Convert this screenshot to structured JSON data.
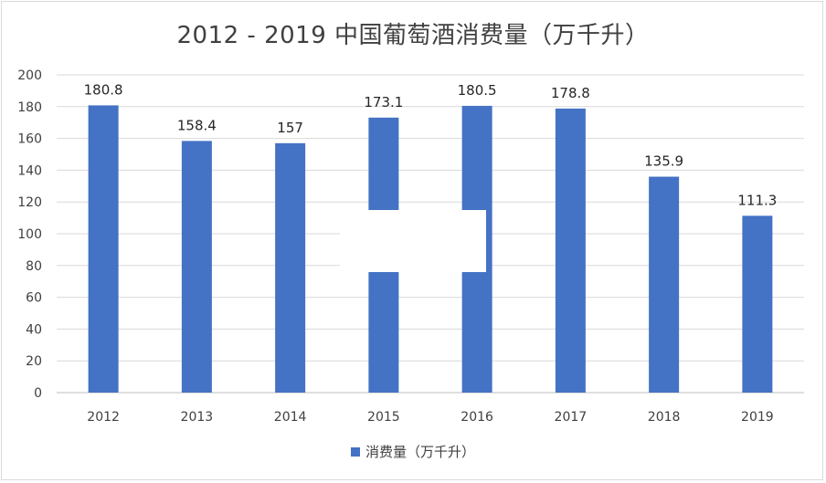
{
  "chart_data": {
    "type": "bar",
    "title": "2012 - 2019 中国葡萄酒消费量（万千升）",
    "categories": [
      "2012",
      "2013",
      "2014",
      "2015",
      "2016",
      "2017",
      "2018",
      "2019"
    ],
    "series": [
      {
        "name": "消费量（万千升）",
        "values": [
          180.8,
          158.4,
          157,
          173.1,
          180.5,
          178.8,
          135.9,
          111.3
        ],
        "color": "#4472c4"
      }
    ],
    "y_ticks": [
      "0",
      "20",
      "40",
      "60",
      "80",
      "100",
      "120",
      "140",
      "160",
      "180",
      "200"
    ],
    "ylim": [
      0,
      200
    ],
    "grid": true,
    "legend_position": "bottom"
  }
}
